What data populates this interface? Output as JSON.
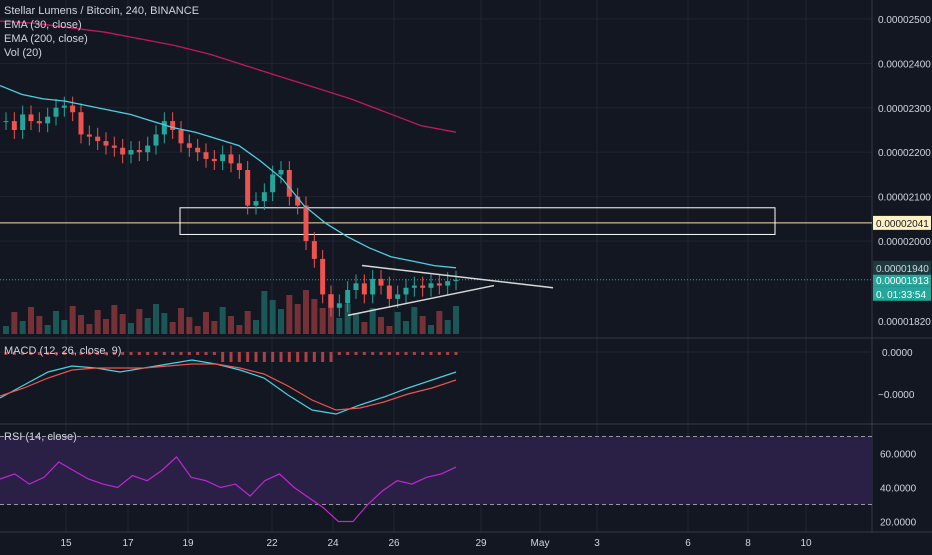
{
  "legend": {
    "title": "Stellar Lumens / Bitcoin, 240, BINANCE",
    "ema30": "EMA (30, close)",
    "ema200": "EMA (200, close)",
    "vol": "Vol (20)",
    "macd": "MACD (12, 26, close, 9)",
    "rsi": "RSI (14, close)"
  },
  "colors": {
    "background": "#131722",
    "up": "#26a69a",
    "down": "#ef5350",
    "ema30": "#4dd0e1",
    "ema200": "#c2185b",
    "box": "#ffffff",
    "resistance": "#ffe0a0",
    "current_price": "#26a69a",
    "rsi_band": "#2a1f45"
  },
  "price_axis": {
    "ticks": [
      "0.00002500",
      "0.00002400",
      "0.00002300",
      "0.00002200",
      "0.00002100",
      "0.00002000",
      "0.00001940",
      "0.00001820"
    ],
    "resistance_label": "0.00002041",
    "current_label": "0.00001913",
    "countdown_prefix": "0.",
    "countdown_label": "01:33:54"
  },
  "macd_axis": {
    "ticks": [
      "0.0000",
      "−0.0000"
    ]
  },
  "rsi_axis": {
    "ticks": [
      "60.0000",
      "40.0000",
      "20.0000"
    ]
  },
  "time_axis": {
    "ticks": [
      "15",
      "17",
      "19",
      "22",
      "24",
      "26",
      "29",
      "May",
      "3",
      "6",
      "8",
      "10"
    ]
  },
  "chart_data": {
    "type": "candlestick",
    "symbol": "Stellar Lumens / Bitcoin",
    "interval": "240",
    "exchange": "BINANCE",
    "y_range": [
      1.8e-05,
      2.52e-05
    ],
    "resistance": 2.041e-05,
    "last_price": 1.913e-05,
    "box_zone": {
      "x_from": "19",
      "x_to": "9",
      "y": [
        2.015e-05,
        2.075e-05
      ]
    },
    "triangle": {
      "upper": [
        [
          "25",
          1.945e-05
        ],
        [
          "May",
          1.895e-05
        ]
      ],
      "lower": [
        [
          "24",
          1.833e-05
        ],
        [
          "28",
          1.9e-05
        ]
      ]
    },
    "ohlc_close_path": [
      2.27e-05,
      2.25e-05,
      2.285e-05,
      2.27e-05,
      2.265e-05,
      2.28e-05,
      2.3e-05,
      2.305e-05,
      2.29e-05,
      2.24e-05,
      2.235e-05,
      2.225e-05,
      2.215e-05,
      2.21e-05,
      2.195e-05,
      2.205e-05,
      2.2e-05,
      2.215e-05,
      2.24e-05,
      2.27e-05,
      2.25e-05,
      2.22e-05,
      2.21e-05,
      2.2e-05,
      2.185e-05,
      2.18e-05,
      2.195e-05,
      2.175e-05,
      2.16e-05,
      2.08e-05,
      2.09e-05,
      2.11e-05,
      2.15e-05,
      2.16e-05,
      2.1e-05,
      2.08e-05,
      2e-05,
      1.96e-05,
      1.88e-05,
      1.85e-05,
      1.86e-05,
      1.89e-05,
      1.905e-05,
      1.88e-05,
      1.915e-05,
      1.9e-05,
      1.87e-05,
      1.88e-05,
      1.895e-05,
      1.9e-05,
      1.895e-05,
      1.905e-05,
      1.9e-05,
      1.91e-05,
      1.913e-05
    ],
    "ema30": [
      2.35e-05,
      2.33e-05,
      2.32e-05,
      2.315e-05,
      2.305e-05,
      2.295e-05,
      2.285e-05,
      2.27e-05,
      2.255e-05,
      2.245e-05,
      2.23e-05,
      2.215e-05,
      2.18e-05,
      2.14e-05,
      2.08e-05,
      2.04e-05,
      2.01e-05,
      1.985e-05,
      1.965e-05,
      1.955e-05,
      1.945e-05,
      1.94e-05
    ],
    "ema200": [
      2.495e-05,
      2.49e-05,
      2.48e-05,
      2.47e-05,
      2.455e-05,
      2.44e-05,
      2.42e-05,
      2.395e-05,
      2.37e-05,
      2.345e-05,
      2.32e-05,
      2.29e-05,
      2.26e-05,
      2.245e-05
    ],
    "rsi_levels": [
      70,
      30
    ],
    "macd": {
      "zero": 0
    }
  }
}
